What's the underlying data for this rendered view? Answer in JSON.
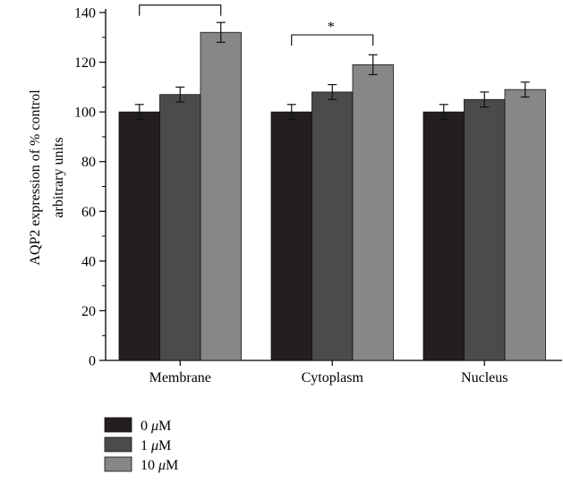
{
  "chart_data": {
    "type": "bar",
    "title": "",
    "xlabel": "",
    "ylabel_lines": [
      "AQP2 expression of % control",
      "arbitrary units"
    ],
    "ylim": [
      0,
      140
    ],
    "yticks": [
      0,
      20,
      40,
      60,
      80,
      100,
      120,
      140
    ],
    "categories": [
      "Membrane",
      "Cytoplasm",
      "Nucleus"
    ],
    "series": [
      {
        "name": "0 μM",
        "color": "#231f20",
        "values": [
          100,
          100,
          100
        ],
        "errors": [
          3,
          3,
          3
        ]
      },
      {
        "name": "1 μM",
        "color": "#4a4b4d",
        "values": [
          107,
          108,
          105
        ],
        "errors": [
          3,
          3,
          3
        ]
      },
      {
        "name": "10 μM",
        "color": "#858789",
        "values": [
          132,
          119,
          109
        ],
        "errors": [
          4,
          4,
          3
        ]
      }
    ],
    "annotations": [
      {
        "category": "Membrane",
        "label": "**",
        "height": 143,
        "left_series": 0,
        "right_series": 2
      },
      {
        "category": "Cytoplasm",
        "label": "*",
        "height": 131,
        "left_series": 0,
        "right_series": 2
      }
    ],
    "legend_position": "bottom-left",
    "grid": false
  }
}
